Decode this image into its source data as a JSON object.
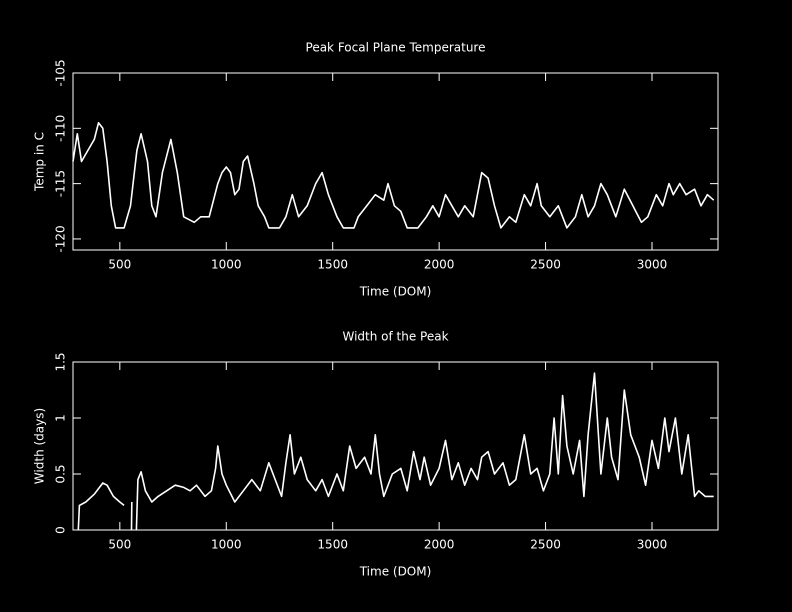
{
  "chart_data": [
    {
      "type": "line",
      "title": "Peak Focal Plane Temperature",
      "x_label": "Time (DOM)",
      "y_label": "Temp in C",
      "xlim": [
        280,
        3310
      ],
      "ylim": [
        -121,
        -105
      ],
      "xticks": [
        500,
        1000,
        1500,
        2000,
        2500,
        3000
      ],
      "yticks": [
        -120,
        -115,
        -110,
        -105
      ],
      "series": [
        {
          "color": "#ffffff",
          "x": [
            280,
            300,
            320,
            350,
            380,
            400,
            420,
            440,
            460,
            480,
            520,
            550,
            580,
            600,
            630,
            650,
            670,
            700,
            740,
            770,
            800,
            850,
            880,
            920,
            960,
            980,
            1000,
            1020,
            1040,
            1060,
            1080,
            1100,
            1130,
            1150,
            1180,
            1200,
            1250,
            1280,
            1310,
            1340,
            1380,
            1420,
            1450,
            1480,
            1520,
            1550,
            1600,
            1620,
            1660,
            1700,
            1740,
            1760,
            1790,
            1820,
            1850,
            1900,
            1940,
            1970,
            2000,
            2030,
            2060,
            2090,
            2120,
            2160,
            2200,
            2230,
            2260,
            2290,
            2330,
            2360,
            2400,
            2430,
            2460,
            2480,
            2520,
            2560,
            2600,
            2640,
            2670,
            2700,
            2730,
            2760,
            2790,
            2830,
            2870,
            2910,
            2950,
            2980,
            3020,
            3050,
            3080,
            3100,
            3130,
            3160,
            3200,
            3230,
            3260,
            3290
          ],
          "values": [
            -113,
            -110.5,
            -113,
            -112,
            -111,
            -109.5,
            -110,
            -113,
            -117,
            -119,
            -119,
            -117,
            -112,
            -110.5,
            -113,
            -117,
            -118,
            -114,
            -111,
            -114,
            -118,
            -118.5,
            -118,
            -118,
            -115,
            -114,
            -113.5,
            -114,
            -116,
            -115.5,
            -113,
            -112.5,
            -115,
            -117,
            -118,
            -119,
            -119,
            -118,
            -116,
            -118,
            -117,
            -115,
            -114,
            -116,
            -118,
            -119,
            -119,
            -118,
            -117,
            -116,
            -116.5,
            -115,
            -117,
            -117.5,
            -119,
            -119,
            -118,
            -117,
            -118,
            -116,
            -117,
            -118,
            -117,
            -118,
            -114,
            -114.5,
            -117,
            -119,
            -118,
            -118.5,
            -116,
            -117,
            -115,
            -117,
            -118,
            -117,
            -119,
            -118,
            -116,
            -118,
            -117,
            -115,
            -116,
            -118,
            -115.5,
            -117,
            -118.5,
            -118,
            -116,
            -117,
            -115,
            -116,
            -115,
            -116,
            -115.5,
            -117,
            -116,
            -116.5
          ]
        }
      ]
    },
    {
      "type": "line",
      "title": "Width of the Peak",
      "x_label": "Time (DOM)",
      "y_label": "Width (days)",
      "xlim": [
        280,
        3310
      ],
      "ylim": [
        0,
        1.5
      ],
      "xticks": [
        500,
        1000,
        1500,
        2000,
        2500,
        3000
      ],
      "yticks": [
        0,
        0.5,
        1,
        1.5
      ],
      "series": [
        {
          "color": "#ffffff",
          "x": [
            305,
            310,
            340,
            380,
            420,
            440,
            470,
            500,
            520,
            530,
            555,
            556,
            565,
            578,
            585,
            600,
            620,
            650,
            680,
            720,
            760,
            800,
            830,
            860,
            900,
            930,
            950,
            960,
            980,
            1000,
            1040,
            1080,
            1120,
            1160,
            1200,
            1230,
            1260,
            1280,
            1300,
            1320,
            1350,
            1380,
            1420,
            1450,
            1480,
            1520,
            1550,
            1580,
            1610,
            1650,
            1680,
            1700,
            1720,
            1740,
            1780,
            1820,
            1850,
            1880,
            1910,
            1930,
            1960,
            2000,
            2030,
            2060,
            2090,
            2120,
            2150,
            2180,
            2200,
            2230,
            2260,
            2300,
            2330,
            2360,
            2400,
            2430,
            2460,
            2490,
            2520,
            2540,
            2560,
            2580,
            2600,
            2630,
            2660,
            2680,
            2700,
            2730,
            2760,
            2790,
            2810,
            2840,
            2870,
            2900,
            2940,
            2970,
            3000,
            3030,
            3060,
            3080,
            3110,
            3140,
            3170,
            3200,
            3220,
            3250,
            3290
          ],
          "values": [
            0,
            0.22,
            0.25,
            0.32,
            0.42,
            0.4,
            0.3,
            0.25,
            0.22,
            null,
            0,
            0.25,
            null,
            0,
            0.45,
            0.52,
            0.35,
            0.25,
            0.3,
            0.35,
            0.4,
            0.38,
            0.35,
            0.4,
            0.3,
            0.35,
            0.55,
            0.75,
            0.5,
            0.4,
            0.25,
            0.35,
            0.45,
            0.35,
            0.6,
            0.45,
            0.3,
            0.6,
            0.85,
            0.5,
            0.65,
            0.45,
            0.35,
            0.45,
            0.3,
            0.5,
            0.35,
            0.75,
            0.55,
            0.65,
            0.5,
            0.85,
            0.5,
            0.3,
            0.5,
            0.55,
            0.35,
            0.7,
            0.45,
            0.65,
            0.4,
            0.55,
            0.8,
            0.45,
            0.6,
            0.4,
            0.55,
            0.45,
            0.65,
            0.7,
            0.5,
            0.6,
            0.4,
            0.45,
            0.85,
            0.5,
            0.55,
            0.35,
            0.5,
            1.0,
            0.5,
            1.2,
            0.75,
            0.5,
            0.8,
            0.3,
            0.85,
            1.4,
            0.5,
            1.0,
            0.65,
            0.45,
            1.25,
            0.85,
            0.65,
            0.4,
            0.8,
            0.55,
            1.0,
            0.7,
            1.0,
            0.5,
            0.85,
            0.3,
            0.35,
            0.3,
            0.3
          ]
        }
      ]
    }
  ]
}
